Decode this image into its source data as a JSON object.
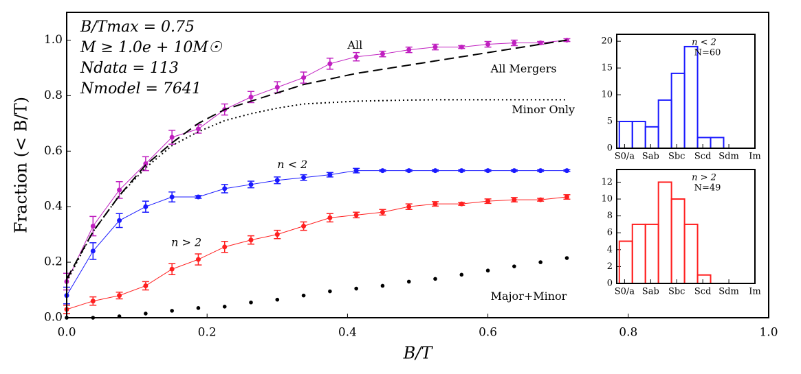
{
  "chart_data": [
    {
      "type": "line",
      "xlabel": "B/T",
      "ylabel": "Fraction (< B/T)",
      "annotations": [
        "B/Tmax = 0.75",
        "M ≥ 1.0e + 10M☉",
        "Ndata = 113",
        "Nmodel = 7641"
      ],
      "x": [
        0,
        0.0375,
        0.075,
        0.1125,
        0.15,
        0.1875,
        0.225,
        0.2625,
        0.3,
        0.3375,
        0.375,
        0.4125,
        0.45,
        0.4875,
        0.525,
        0.5625,
        0.6,
        0.6375,
        0.675,
        0.7125
      ],
      "xlim": [
        0,
        1.0
      ],
      "xticks": [
        {
          "value": 0,
          "label": "0.0"
        },
        0.2,
        0.4,
        0.6,
        0.8,
        {
          "value": 1,
          "label": "1.0"
        }
      ],
      "ylim": [
        0,
        1.1
      ],
      "yticks": [
        {
          "value": 0,
          "label": "0.0"
        },
        0.2,
        0.4,
        0.6,
        0.8,
        {
          "value": 1,
          "label": "1.0"
        }
      ],
      "series": [
        {
          "name": "All",
          "color": "#c020c0",
          "line": "solid",
          "marker": true,
          "values": [
            0.13,
            0.33,
            0.46,
            0.555,
            0.65,
            0.68,
            0.75,
            0.795,
            0.83,
            0.865,
            0.915,
            0.94,
            0.95,
            0.965,
            0.975,
            0.975,
            0.985,
            0.99,
            0.99,
            1.0
          ],
          "errors": [
            0.03,
            0.035,
            0.03,
            0.025,
            0.025,
            0.015,
            0.02,
            0.02,
            0.02,
            0.02,
            0.02,
            0.015,
            0.01,
            0.01,
            0.01,
            0.005,
            0.01,
            0.01,
            0.005,
            0.005
          ]
        },
        {
          "name": "n < 2",
          "color": "#1a1aff",
          "line": "solid",
          "marker": true,
          "values": [
            0.08,
            0.24,
            0.35,
            0.4,
            0.435,
            0.435,
            0.465,
            0.48,
            0.495,
            0.505,
            0.515,
            0.53,
            0.53,
            0.53,
            0.53,
            0.53,
            0.53,
            0.53,
            0.53,
            0.53
          ],
          "errors": [
            0.03,
            0.03,
            0.025,
            0.02,
            0.018,
            0.005,
            0.015,
            0.012,
            0.012,
            0.01,
            0.008,
            0.008,
            0.003,
            0.003,
            0.003,
            0.003,
            0.003,
            0.003,
            0.003,
            0.003
          ]
        },
        {
          "name": "n > 2",
          "color": "#ff2020",
          "line": "solid",
          "marker": true,
          "values": [
            0.03,
            0.06,
            0.08,
            0.115,
            0.175,
            0.21,
            0.255,
            0.28,
            0.3,
            0.33,
            0.36,
            0.37,
            0.38,
            0.4,
            0.41,
            0.41,
            0.42,
            0.425,
            0.425,
            0.435
          ],
          "errors": [
            0.015,
            0.015,
            0.012,
            0.015,
            0.02,
            0.02,
            0.02,
            0.015,
            0.015,
            0.015,
            0.015,
            0.01,
            0.01,
            0.01,
            0.008,
            0.005,
            0.008,
            0.008,
            0.005,
            0.008
          ]
        },
        {
          "name": "Major+Minor",
          "color": "#000000",
          "line": "none",
          "marker": true,
          "values": [
            0,
            0,
            0.005,
            0.015,
            0.025,
            0.035,
            0.04,
            0.055,
            0.065,
            0.08,
            0.095,
            0.105,
            0.115,
            0.13,
            0.14,
            0.155,
            0.17,
            0.185,
            0.2,
            0.215
          ]
        },
        {
          "name": "All Mergers",
          "color": "#000000",
          "line": "dashed",
          "marker": false,
          "values": [
            0.14,
            0.31,
            0.44,
            0.55,
            0.63,
            0.7,
            0.75,
            0.78,
            0.81,
            0.84,
            0.86,
            0.88,
            0.895,
            0.91,
            0.925,
            0.94,
            0.955,
            0.97,
            0.985,
            1.0
          ]
        },
        {
          "name": "Minor Only",
          "color": "#000000",
          "line": "dotted",
          "marker": false,
          "values": [
            0.13,
            0.31,
            0.44,
            0.54,
            0.62,
            0.67,
            0.71,
            0.735,
            0.755,
            0.77,
            0.775,
            0.78,
            0.782,
            0.784,
            0.785,
            0.785,
            0.785,
            0.785,
            0.785,
            0.785
          ]
        }
      ]
    },
    {
      "type": "histogram",
      "title": "n < 2",
      "subtitle": "N=60",
      "color": "#1a1aff",
      "bins": [
        -0.2,
        0.3,
        0.8,
        1.3,
        1.8,
        2.3,
        2.8,
        3.3,
        3.8
      ],
      "counts": [
        5,
        5,
        4,
        9,
        14,
        19,
        2,
        2
      ],
      "xlim": [
        -0.3,
        5
      ],
      "xticks": [
        {
          "value": 0,
          "label": "S0/a"
        },
        {
          "value": 1,
          "label": "Sab"
        },
        {
          "value": 2,
          "label": "Sbc"
        },
        {
          "value": 3,
          "label": "Scd"
        },
        {
          "value": 4,
          "label": "Sdm"
        },
        {
          "value": 5,
          "label": "Im"
        }
      ],
      "ylim": [
        0,
        21.3
      ],
      "yticks": [
        0,
        5,
        10,
        15,
        20
      ]
    },
    {
      "type": "histogram",
      "title": "n > 2",
      "subtitle": "N=49",
      "color": "#ff2020",
      "bins": [
        -0.2,
        0.3,
        0.8,
        1.3,
        1.8,
        2.3,
        2.8,
        3.3
      ],
      "counts": [
        5,
        7,
        7,
        12,
        10,
        7,
        1
      ],
      "xlim": [
        -0.3,
        5
      ],
      "xticks": [
        {
          "value": 0,
          "label": "S0/a"
        },
        {
          "value": 1,
          "label": "Sab"
        },
        {
          "value": 2,
          "label": "Sbc"
        },
        {
          "value": 3,
          "label": "Scd"
        },
        {
          "value": 4,
          "label": "Sdm"
        },
        {
          "value": 5,
          "label": "Im"
        }
      ],
      "ylim": [
        0,
        13.5
      ],
      "yticks": [
        0,
        2,
        4,
        6,
        8,
        10,
        12
      ]
    }
  ]
}
